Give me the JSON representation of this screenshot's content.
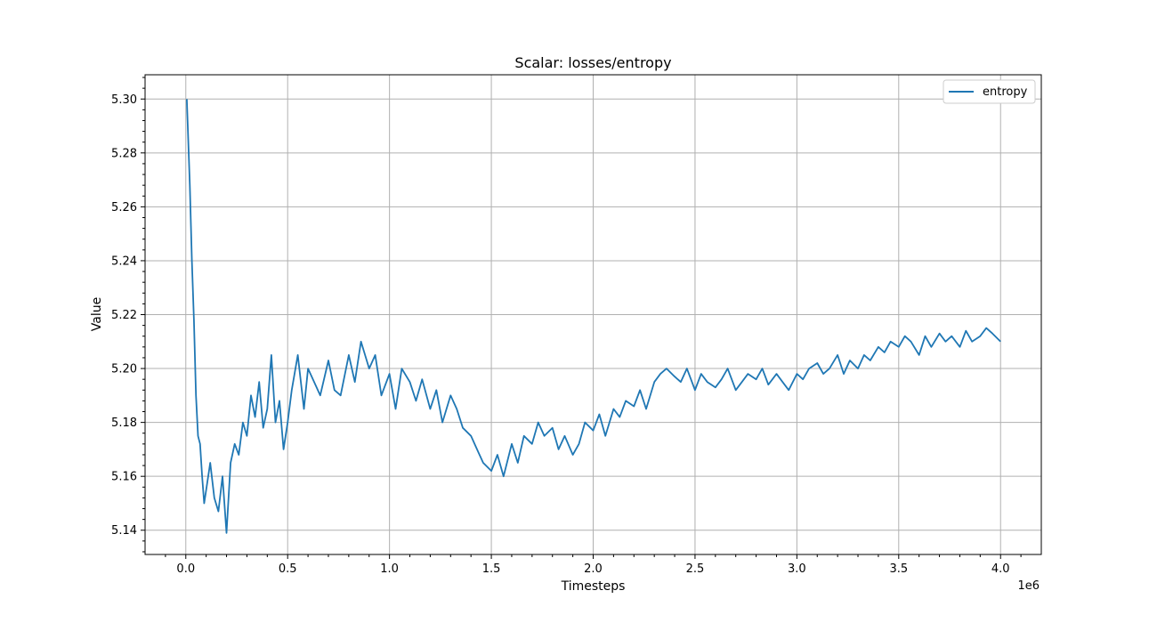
{
  "chart_data": {
    "type": "line",
    "title": "Scalar: losses/entropy",
    "xlabel": "Timesteps",
    "ylabel": "Value",
    "x_offset_label": "1e6",
    "xlim": [
      -0.2,
      4.2
    ],
    "ylim": [
      5.131,
      5.309
    ],
    "xticks": [
      0.0,
      0.5,
      1.0,
      1.5,
      2.0,
      2.5,
      3.0,
      3.5,
      4.0
    ],
    "xtick_labels": [
      "0.0",
      "0.5",
      "1.0",
      "1.5",
      "2.0",
      "2.5",
      "3.0",
      "3.5",
      "4.0"
    ],
    "yticks": [
      5.14,
      5.16,
      5.18,
      5.2,
      5.22,
      5.24,
      5.26,
      5.28,
      5.3
    ],
    "ytick_labels": [
      "5.14",
      "5.16",
      "5.18",
      "5.20",
      "5.22",
      "5.24",
      "5.26",
      "5.28",
      "5.30"
    ],
    "grid": true,
    "legend_position": "top-right",
    "series": [
      {
        "name": "entropy",
        "color": "#1f77b4",
        "x": [
          0.005,
          0.02,
          0.03,
          0.04,
          0.05,
          0.06,
          0.07,
          0.08,
          0.09,
          0.1,
          0.12,
          0.14,
          0.16,
          0.18,
          0.2,
          0.22,
          0.24,
          0.26,
          0.28,
          0.3,
          0.32,
          0.34,
          0.36,
          0.38,
          0.4,
          0.42,
          0.44,
          0.46,
          0.48,
          0.5,
          0.52,
          0.55,
          0.58,
          0.6,
          0.63,
          0.66,
          0.7,
          0.73,
          0.76,
          0.8,
          0.83,
          0.86,
          0.9,
          0.93,
          0.96,
          1.0,
          1.03,
          1.06,
          1.1,
          1.13,
          1.16,
          1.2,
          1.23,
          1.26,
          1.3,
          1.33,
          1.36,
          1.4,
          1.43,
          1.46,
          1.5,
          1.53,
          1.56,
          1.6,
          1.63,
          1.66,
          1.7,
          1.73,
          1.76,
          1.8,
          1.83,
          1.86,
          1.9,
          1.93,
          1.96,
          2.0,
          2.03,
          2.06,
          2.1,
          2.13,
          2.16,
          2.2,
          2.23,
          2.26,
          2.3,
          2.33,
          2.36,
          2.4,
          2.43,
          2.46,
          2.5,
          2.53,
          2.56,
          2.6,
          2.63,
          2.66,
          2.7,
          2.73,
          2.76,
          2.8,
          2.83,
          2.86,
          2.9,
          2.93,
          2.96,
          3.0,
          3.03,
          3.06,
          3.1,
          3.13,
          3.16,
          3.2,
          3.23,
          3.26,
          3.3,
          3.33,
          3.36,
          3.4,
          3.43,
          3.46,
          3.5,
          3.53,
          3.56,
          3.6,
          3.63,
          3.66,
          3.7,
          3.73,
          3.76,
          3.8,
          3.83,
          3.86,
          3.9,
          3.93,
          3.96,
          4.0
        ],
        "y": [
          5.3,
          5.268,
          5.24,
          5.218,
          5.19,
          5.175,
          5.172,
          5.16,
          5.15,
          5.155,
          5.165,
          5.152,
          5.147,
          5.16,
          5.139,
          5.165,
          5.172,
          5.168,
          5.18,
          5.175,
          5.19,
          5.182,
          5.195,
          5.178,
          5.185,
          5.205,
          5.18,
          5.188,
          5.17,
          5.18,
          5.192,
          5.205,
          5.185,
          5.2,
          5.195,
          5.19,
          5.203,
          5.192,
          5.19,
          5.205,
          5.195,
          5.21,
          5.2,
          5.205,
          5.19,
          5.198,
          5.185,
          5.2,
          5.195,
          5.188,
          5.196,
          5.185,
          5.192,
          5.18,
          5.19,
          5.185,
          5.178,
          5.175,
          5.17,
          5.165,
          5.162,
          5.168,
          5.16,
          5.172,
          5.165,
          5.175,
          5.172,
          5.18,
          5.175,
          5.178,
          5.17,
          5.175,
          5.168,
          5.172,
          5.18,
          5.177,
          5.183,
          5.175,
          5.185,
          5.182,
          5.188,
          5.186,
          5.192,
          5.185,
          5.195,
          5.198,
          5.2,
          5.197,
          5.195,
          5.2,
          5.192,
          5.198,
          5.195,
          5.193,
          5.196,
          5.2,
          5.192,
          5.195,
          5.198,
          5.196,
          5.2,
          5.194,
          5.198,
          5.195,
          5.192,
          5.198,
          5.196,
          5.2,
          5.202,
          5.198,
          5.2,
          5.205,
          5.198,
          5.203,
          5.2,
          5.205,
          5.203,
          5.208,
          5.206,
          5.21,
          5.208,
          5.212,
          5.21,
          5.205,
          5.212,
          5.208,
          5.213,
          5.21,
          5.212,
          5.208,
          5.214,
          5.21,
          5.212,
          5.215,
          5.213,
          5.21
        ]
      }
    ]
  }
}
